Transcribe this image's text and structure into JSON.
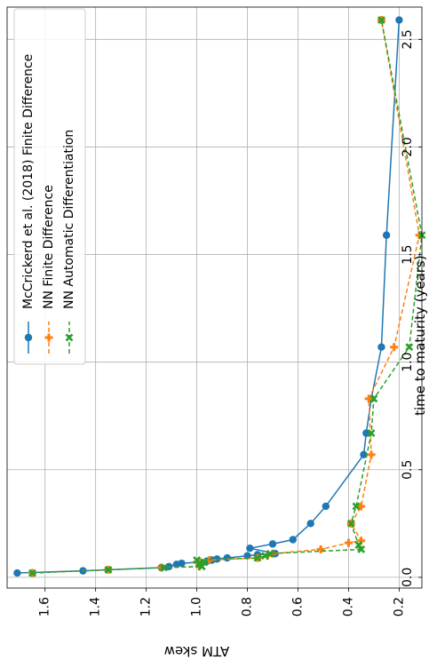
{
  "chart_data": {
    "type": "line",
    "rotation": "figure rotated 90 degrees counter-clockwise",
    "xlabel": "time to maturity (years)",
    "ylabel": "ATM skew",
    "xlim": [
      -0.05,
      2.65
    ],
    "ylim": [
      1.75,
      0.11
    ],
    "xticks": [
      0.0,
      0.5,
      1.0,
      1.5,
      2.0,
      2.5
    ],
    "xtick_labels": [
      "0.0",
      "0.5",
      "1.0",
      "1.5",
      "2.0",
      "2.5"
    ],
    "yticks": [
      1.6,
      1.4,
      1.2,
      1.0,
      0.8,
      0.6,
      0.4,
      0.2
    ],
    "ytick_labels": [
      "1.6",
      "1.4",
      "1.2",
      "1.0",
      "0.8",
      "0.6",
      "0.4",
      "0.2"
    ],
    "grid": true,
    "legend_position": "upper-left",
    "series": [
      {
        "name": "McCrickerd et al. (2018) Finite Difference",
        "color": "#1f77b4",
        "linestyle": "solid",
        "marker": "circle",
        "x": [
          0.02,
          0.03,
          0.035,
          0.045,
          0.05,
          0.06,
          0.065,
          0.07,
          0.075,
          0.08,
          0.085,
          0.09,
          0.1,
          0.105,
          0.11,
          0.135,
          0.155,
          0.175,
          0.25,
          0.33,
          0.57,
          0.67,
          0.83,
          1.07,
          1.59,
          2.59
        ],
        "y": [
          1.71,
          1.45,
          1.35,
          1.14,
          1.11,
          1.08,
          1.06,
          0.99,
          0.96,
          0.94,
          0.92,
          0.88,
          0.8,
          0.76,
          0.69,
          0.79,
          0.7,
          0.62,
          0.55,
          0.49,
          0.34,
          0.33,
          0.31,
          0.27,
          0.25,
          0.2
        ]
      },
      {
        "name": "NN Finite Difference",
        "color": "#ff7f0e",
        "linestyle": "dashed",
        "marker": "plus",
        "x": [
          0.02,
          0.035,
          0.045,
          0.05,
          0.06,
          0.07,
          0.075,
          0.08,
          0.09,
          0.1,
          0.11,
          0.13,
          0.16,
          0.17,
          0.25,
          0.33,
          0.57,
          0.83,
          1.07,
          1.59,
          2.59
        ],
        "y": [
          1.65,
          1.35,
          1.14,
          0.99,
          0.98,
          1.0,
          0.99,
          0.95,
          0.76,
          0.72,
          0.7,
          0.51,
          0.4,
          0.35,
          0.39,
          0.35,
          0.31,
          0.32,
          0.22,
          0.12,
          0.27
        ]
      },
      {
        "name": "NN Automatic Differentiation",
        "color": "#2ca02c",
        "linestyle": "dashed",
        "marker": "x",
        "x": [
          0.02,
          0.035,
          0.045,
          0.05,
          0.06,
          0.065,
          0.07,
          0.08,
          0.09,
          0.1,
          0.11,
          0.13,
          0.15,
          0.25,
          0.33,
          0.67,
          0.83,
          1.07,
          1.59,
          2.59
        ],
        "y": [
          1.65,
          1.35,
          1.13,
          0.98,
          0.99,
          0.99,
          0.97,
          1.0,
          0.76,
          0.73,
          0.71,
          0.35,
          0.36,
          0.39,
          0.37,
          0.31,
          0.3,
          0.16,
          0.11,
          0.27
        ]
      }
    ]
  }
}
